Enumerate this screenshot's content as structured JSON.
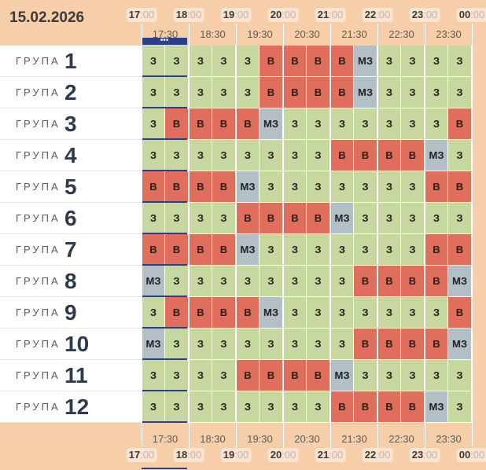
{
  "date": "15.02.2026",
  "group_word": "ГРУПА",
  "hours_top": [
    {
      "hour": "17",
      "min": ":00"
    },
    {
      "hour": "18",
      "min": ":00"
    },
    {
      "hour": "19",
      "min": ":00"
    },
    {
      "hour": "20",
      "min": ":00"
    },
    {
      "hour": "21",
      "min": ":00"
    },
    {
      "hour": "22",
      "min": ":00"
    },
    {
      "hour": "23",
      "min": ":00"
    },
    {
      "hour": "00",
      "min": ":00"
    }
  ],
  "half_hours": [
    "17:30",
    "18:30",
    "19:30",
    "20:30",
    "21:30",
    "22:30",
    "23:30"
  ],
  "selected_marker": "•••",
  "colors": {
    "free": "#c6d8a0",
    "busy": "#df6f5c",
    "mz": "#b2bfc7",
    "selected": "#2b3f8c"
  },
  "groups": [
    {
      "num": "1",
      "slots": [
        "З",
        "З",
        "З",
        "З",
        "З",
        "В",
        "В",
        "В",
        "В",
        "МЗ",
        "З",
        "З",
        "З",
        "З"
      ]
    },
    {
      "num": "2",
      "slots": [
        "З",
        "З",
        "З",
        "З",
        "З",
        "В",
        "В",
        "В",
        "В",
        "МЗ",
        "З",
        "З",
        "З",
        "З"
      ]
    },
    {
      "num": "3",
      "slots": [
        "З",
        "В",
        "В",
        "В",
        "В",
        "МЗ",
        "З",
        "З",
        "З",
        "З",
        "З",
        "З",
        "З",
        "В"
      ]
    },
    {
      "num": "4",
      "slots": [
        "З",
        "З",
        "З",
        "З",
        "З",
        "З",
        "З",
        "З",
        "В",
        "В",
        "В",
        "В",
        "МЗ",
        "З"
      ]
    },
    {
      "num": "5",
      "slots": [
        "В",
        "В",
        "В",
        "В",
        "МЗ",
        "З",
        "З",
        "З",
        "З",
        "З",
        "З",
        "З",
        "В",
        "В"
      ]
    },
    {
      "num": "6",
      "slots": [
        "З",
        "З",
        "З",
        "З",
        "В",
        "В",
        "В",
        "В",
        "МЗ",
        "З",
        "З",
        "З",
        "З",
        "З"
      ]
    },
    {
      "num": "7",
      "slots": [
        "В",
        "В",
        "В",
        "В",
        "МЗ",
        "З",
        "З",
        "З",
        "З",
        "З",
        "З",
        "З",
        "В",
        "В"
      ]
    },
    {
      "num": "8",
      "slots": [
        "МЗ",
        "З",
        "З",
        "З",
        "З",
        "З",
        "З",
        "З",
        "З",
        "В",
        "В",
        "В",
        "В",
        "МЗ"
      ]
    },
    {
      "num": "9",
      "slots": [
        "З",
        "В",
        "В",
        "В",
        "В",
        "МЗ",
        "З",
        "З",
        "З",
        "З",
        "З",
        "З",
        "З",
        "В"
      ]
    },
    {
      "num": "10",
      "slots": [
        "МЗ",
        "З",
        "З",
        "З",
        "З",
        "З",
        "З",
        "З",
        "З",
        "В",
        "В",
        "В",
        "В",
        "МЗ"
      ]
    },
    {
      "num": "11",
      "slots": [
        "З",
        "З",
        "З",
        "З",
        "В",
        "В",
        "В",
        "В",
        "МЗ",
        "З",
        "З",
        "З",
        "З",
        "З"
      ]
    },
    {
      "num": "12",
      "slots": [
        "З",
        "З",
        "З",
        "З",
        "З",
        "З",
        "З",
        "З",
        "В",
        "В",
        "В",
        "В",
        "МЗ",
        "З"
      ]
    }
  ]
}
